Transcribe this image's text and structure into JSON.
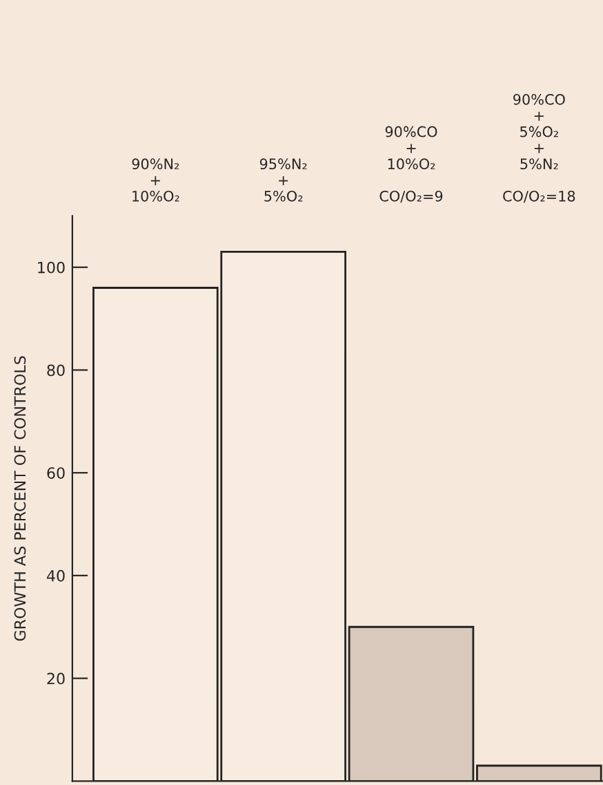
{
  "chart_data": {
    "type": "bar",
    "ylabel": "GROWTH AS PERCENT OF CONTROLS",
    "categories": [
      "90%N₂\n+\n10%O₂",
      "95%N₂\n+\n5%O₂",
      "90%CO\n+\n10%O₂\n\nCO/O₂=9",
      "90%CO\n+\n5%O₂\n+\n5%N₂\n\nCO/O₂=18"
    ],
    "values": [
      96,
      103,
      30,
      3
    ],
    "colors": [
      "#f8ebe0",
      "#f8ebe0",
      "#d8c9bc",
      "#d8c9bc"
    ],
    "ylim": [
      0,
      110
    ],
    "yticks": [
      20,
      40,
      60,
      80,
      100
    ],
    "grid": false,
    "legend": false
  }
}
